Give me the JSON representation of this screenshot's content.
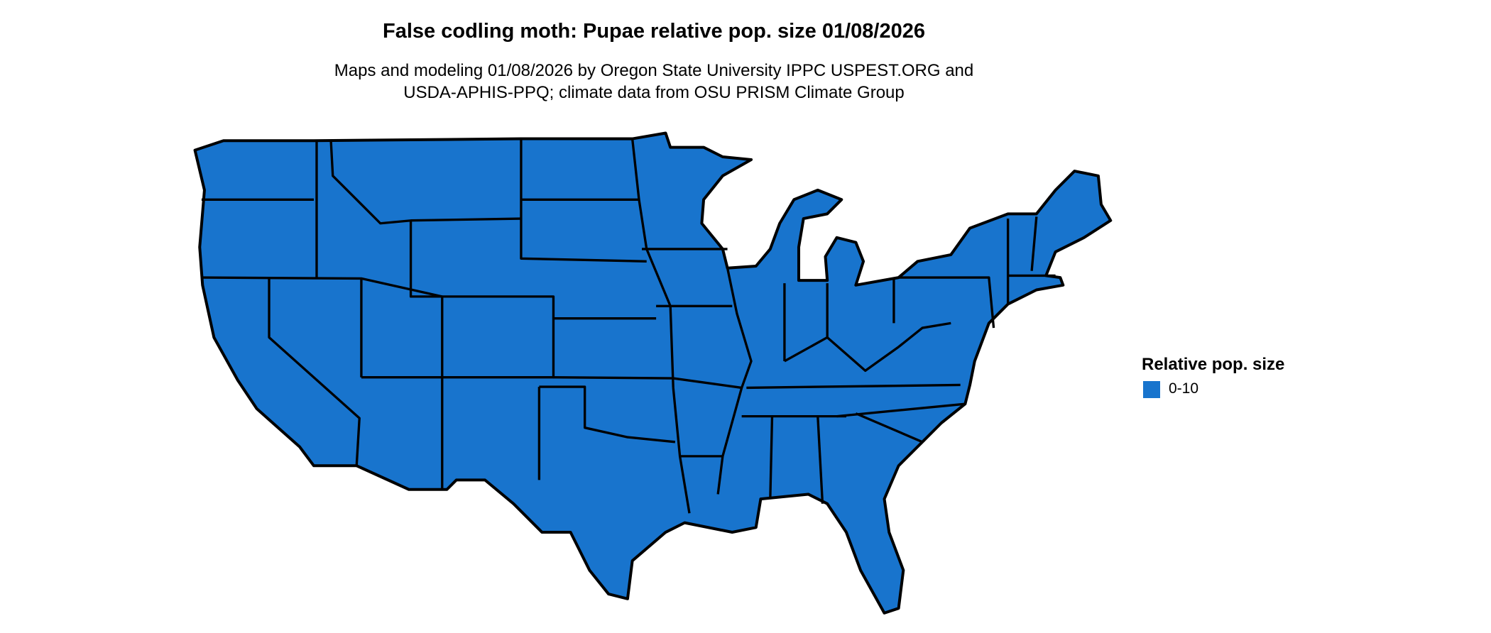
{
  "title": "False codling moth: Pupae relative pop. size 01/08/2026",
  "subtitle_lines": [
    "Maps and modeling 01/08/2026 by Oregon State University IPPC USPEST.ORG and",
    "USDA-APHIS-PPQ; climate data from OSU PRISM Climate Group"
  ],
  "map": {
    "region": "Contiguous United States (state boundaries)",
    "fill_color": "#1874CD",
    "border_color": "#000000"
  },
  "legend": {
    "title": "Relative pop. size",
    "items": [
      {
        "label": "0-10",
        "color": "#1874CD"
      }
    ]
  }
}
